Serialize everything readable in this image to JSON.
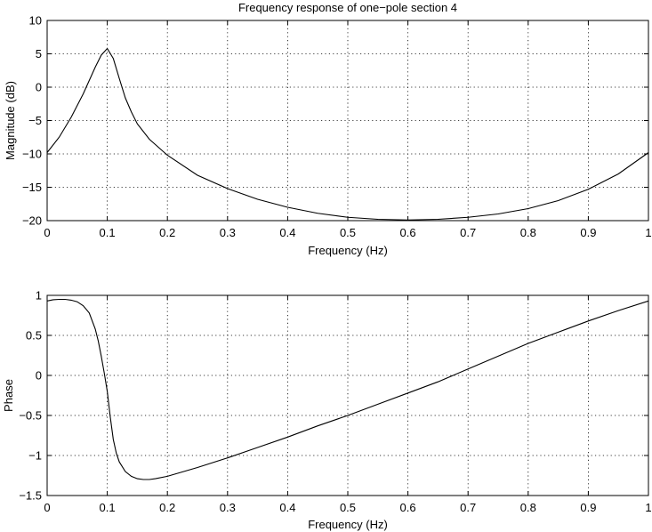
{
  "chart_data": [
    {
      "type": "line",
      "title": "Frequency response of one−pole section 4",
      "xlabel": "Frequency (Hz)",
      "ylabel": "Magnitude (dB)",
      "xlim": [
        0,
        1
      ],
      "ylim": [
        -20,
        10
      ],
      "xticks": [
        0,
        0.1,
        0.2,
        0.3,
        0.4,
        0.5,
        0.6,
        0.7,
        0.8,
        0.9,
        1
      ],
      "xtick_labels": [
        "0",
        "0.1",
        "0.2",
        "0.3",
        "0.4",
        "0.5",
        "0.6",
        "0.7",
        "0.8",
        "0.9",
        "1"
      ],
      "yticks": [
        -20,
        -15,
        -10,
        -5,
        0,
        5,
        10
      ],
      "ytick_labels": [
        "−20",
        "−15",
        "−10",
        "−5",
        "0",
        "5",
        "10"
      ],
      "grid": true,
      "series": [
        {
          "x": [
            0,
            0.02,
            0.04,
            0.06,
            0.08,
            0.09,
            0.1,
            0.11,
            0.12,
            0.13,
            0.14,
            0.15,
            0.17,
            0.2,
            0.25,
            0.3,
            0.35,
            0.4,
            0.45,
            0.5,
            0.55,
            0.6,
            0.65,
            0.7,
            0.75,
            0.8,
            0.85,
            0.9,
            0.95,
            1.0
          ],
          "y": [
            -9.8,
            -7.5,
            -4.5,
            -1.0,
            3.0,
            4.8,
            5.8,
            4.3,
            1.3,
            -1.6,
            -3.7,
            -5.5,
            -7.8,
            -10.2,
            -13.2,
            -15.2,
            -16.8,
            -18.0,
            -18.9,
            -19.5,
            -19.8,
            -19.9,
            -19.8,
            -19.5,
            -19.0,
            -18.2,
            -17.0,
            -15.3,
            -13.0,
            -9.8
          ]
        }
      ]
    },
    {
      "type": "line",
      "xlabel": "Frequency (Hz)",
      "ylabel": "Phase",
      "xlim": [
        0,
        1
      ],
      "ylim": [
        -1.5,
        1
      ],
      "xticks": [
        0,
        0.1,
        0.2,
        0.3,
        0.4,
        0.5,
        0.6,
        0.7,
        0.8,
        0.9,
        1
      ],
      "xtick_labels": [
        "0",
        "0.1",
        "0.2",
        "0.3",
        "0.4",
        "0.5",
        "0.6",
        "0.7",
        "0.8",
        "0.9",
        "1"
      ],
      "yticks": [
        -1.5,
        -1,
        -0.5,
        0,
        0.5,
        1
      ],
      "ytick_labels": [
        "−1.5",
        "−1",
        "−0.5",
        "0",
        "0.5",
        "1"
      ],
      "grid": true,
      "series": [
        {
          "x": [
            0,
            0.01,
            0.02,
            0.03,
            0.04,
            0.05,
            0.06,
            0.07,
            0.08,
            0.085,
            0.09,
            0.095,
            0.1,
            0.105,
            0.11,
            0.115,
            0.12,
            0.13,
            0.14,
            0.15,
            0.16,
            0.17,
            0.18,
            0.2,
            0.25,
            0.3,
            0.35,
            0.4,
            0.45,
            0.5,
            0.55,
            0.6,
            0.65,
            0.7,
            0.75,
            0.8,
            0.85,
            0.9,
            0.95,
            1.0
          ],
          "y": [
            0.93,
            0.945,
            0.95,
            0.95,
            0.94,
            0.92,
            0.87,
            0.78,
            0.58,
            0.43,
            0.24,
            0.03,
            -0.2,
            -0.52,
            -0.8,
            -0.97,
            -1.08,
            -1.2,
            -1.26,
            -1.29,
            -1.3,
            -1.3,
            -1.29,
            -1.26,
            -1.15,
            -1.03,
            -0.9,
            -0.77,
            -0.63,
            -0.5,
            -0.36,
            -0.22,
            -0.08,
            0.08,
            0.24,
            0.4,
            0.54,
            0.68,
            0.81,
            0.93
          ]
        }
      ]
    }
  ]
}
